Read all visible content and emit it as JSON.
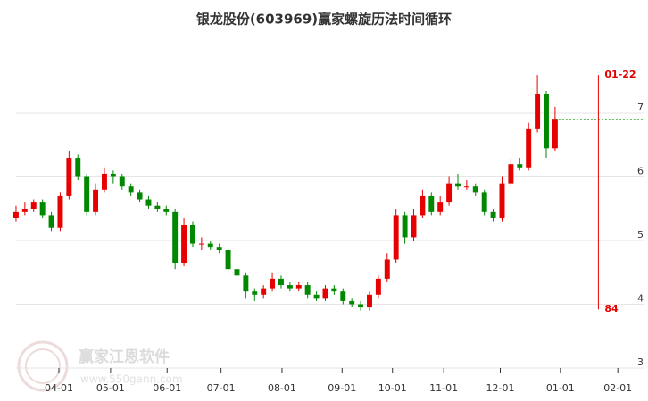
{
  "chart_data": {
    "type": "candlestick",
    "title": "银龙股份(603969)赢家螺旋历法时间循环",
    "open": [
      5.35,
      5.45,
      5.5,
      5.6,
      5.4,
      5.2,
      5.7,
      6.3,
      6.0,
      5.45,
      5.8,
      6.05,
      6.0,
      5.85,
      5.75,
      5.65,
      5.55,
      5.5,
      5.45,
      4.65,
      5.25,
      4.95,
      4.95,
      4.9,
      4.85,
      4.55,
      4.45,
      4.2,
      4.15,
      4.25,
      4.4,
      4.3,
      4.25,
      4.3,
      4.15,
      4.1,
      4.25,
      4.2,
      4.05,
      4.0,
      3.95,
      4.15,
      4.4,
      4.7,
      5.4,
      5.05,
      5.4,
      5.7,
      5.45,
      5.6,
      5.9,
      5.85,
      5.85,
      5.75,
      5.45,
      5.35,
      5.9,
      6.2,
      6.15,
      6.75,
      7.3,
      6.45
    ],
    "high": [
      5.55,
      5.6,
      5.65,
      5.65,
      5.45,
      5.75,
      6.4,
      6.35,
      6.05,
      5.9,
      6.15,
      6.1,
      6.05,
      5.9,
      5.8,
      5.7,
      5.6,
      5.55,
      5.5,
      5.35,
      5.3,
      5.05,
      5.0,
      4.95,
      4.9,
      4.6,
      4.5,
      4.25,
      4.3,
      4.5,
      4.45,
      4.35,
      4.35,
      4.35,
      4.2,
      4.3,
      4.3,
      4.25,
      4.1,
      4.05,
      4.2,
      4.45,
      4.8,
      5.5,
      5.45,
      5.5,
      5.8,
      5.75,
      5.7,
      6.0,
      6.05,
      5.95,
      5.9,
      5.8,
      5.5,
      6.0,
      6.3,
      6.3,
      6.85,
      7.6,
      7.35,
      7.1
    ],
    "low": [
      5.3,
      5.4,
      5.45,
      5.35,
      5.15,
      5.15,
      5.65,
      5.95,
      5.4,
      5.4,
      5.75,
      5.9,
      5.8,
      5.7,
      5.6,
      5.5,
      5.45,
      5.4,
      4.55,
      4.6,
      4.9,
      4.85,
      4.85,
      4.8,
      4.5,
      4.4,
      4.1,
      4.05,
      4.1,
      4.2,
      4.25,
      4.2,
      4.2,
      4.1,
      4.05,
      4.05,
      4.15,
      4.0,
      3.95,
      3.9,
      3.9,
      4.1,
      4.35,
      4.65,
      4.95,
      5.0,
      5.35,
      5.4,
      5.4,
      5.55,
      5.8,
      5.8,
      5.7,
      5.4,
      5.3,
      5.3,
      5.85,
      6.1,
      6.1,
      6.7,
      6.3,
      6.4
    ],
    "close": [
      5.45,
      5.5,
      5.6,
      5.4,
      5.2,
      5.7,
      6.3,
      6.0,
      5.45,
      5.8,
      6.05,
      6.0,
      5.85,
      5.75,
      5.65,
      5.55,
      5.5,
      5.45,
      4.65,
      5.25,
      4.95,
      4.95,
      4.9,
      4.85,
      4.55,
      4.45,
      4.2,
      4.15,
      4.25,
      4.4,
      4.3,
      4.25,
      4.3,
      4.15,
      4.1,
      4.25,
      4.2,
      4.05,
      4.0,
      3.95,
      4.15,
      4.4,
      4.7,
      5.4,
      5.05,
      5.4,
      5.7,
      5.45,
      5.6,
      5.9,
      5.85,
      5.85,
      5.75,
      5.45,
      5.35,
      5.9,
      6.2,
      6.15,
      6.75,
      7.3,
      6.45,
      6.9
    ],
    "up_color": "#e60000",
    "down_color": "#008800",
    "xlim": [
      -0.5,
      70
    ],
    "xticks": [
      {
        "value": 4.85,
        "label": "04-01"
      },
      {
        "value": 10.7,
        "label": "05-01"
      },
      {
        "value": 17.1,
        "label": "06-01"
      },
      {
        "value": 23.2,
        "label": "07-01"
      },
      {
        "value": 30.1,
        "label": "08-01"
      },
      {
        "value": 36.9,
        "label": "09-01"
      },
      {
        "value": 42.6,
        "label": "10-01"
      },
      {
        "value": 48.4,
        "label": "11-01"
      },
      {
        "value": 54.8,
        "label": "12-01"
      },
      {
        "value": 61.6,
        "label": "01-01"
      },
      {
        "value": 68.1,
        "label": "02-01"
      }
    ],
    "ylim": [
      3,
      8
    ],
    "yticks": [
      3,
      4,
      5,
      6,
      7
    ],
    "grid": true,
    "reference_line": {
      "value": 6.9,
      "color": "#009900"
    },
    "cycle_marker": {
      "x": 65.9,
      "top": 7.6,
      "bottom": 3.92,
      "label": "01-22",
      "count": 84,
      "color": "#e60000"
    },
    "watermark": {
      "name": "赢家江恩软件",
      "url": "www.550gann.com"
    }
  }
}
